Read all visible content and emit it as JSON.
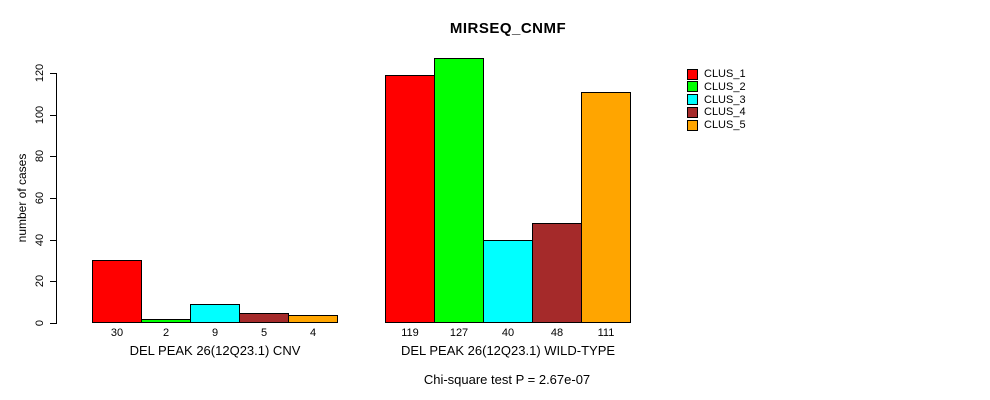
{
  "chart_data": {
    "type": "bar",
    "title": "MIRSEQ_CNMF",
    "ylabel": "number of cases",
    "ylim": [
      0,
      120
    ],
    "yticks": [
      0,
      20,
      40,
      60,
      80,
      100,
      120
    ],
    "grid": false,
    "legend_position": "top-right",
    "annotation": "Chi-square test P = 2.67e-07",
    "bar_border_color": "#000000",
    "categories": [
      "DEL PEAK 26(12Q23.1) CNV",
      "DEL PEAK 26(12Q23.1) WILD-TYPE"
    ],
    "groups": [
      {
        "label": "DEL PEAK 26(12Q23.1) CNV",
        "values": [
          30,
          2,
          9,
          5,
          4
        ]
      },
      {
        "label": "DEL PEAK 26(12Q23.1) WILD-TYPE",
        "values": [
          119,
          127,
          40,
          48,
          111
        ]
      }
    ],
    "series": [
      {
        "name": "CLUS_1",
        "color": "#FF0000",
        "values": [
          30,
          119
        ]
      },
      {
        "name": "CLUS_2",
        "color": "#00FF00",
        "values": [
          2,
          127
        ]
      },
      {
        "name": "CLUS_3",
        "color": "#00FFFF",
        "values": [
          9,
          40
        ]
      },
      {
        "name": "CLUS_4",
        "color": "#A52A2A",
        "values": [
          5,
          48
        ]
      },
      {
        "name": "CLUS_5",
        "color": "#FFA500",
        "values": [
          4,
          111
        ]
      }
    ]
  }
}
